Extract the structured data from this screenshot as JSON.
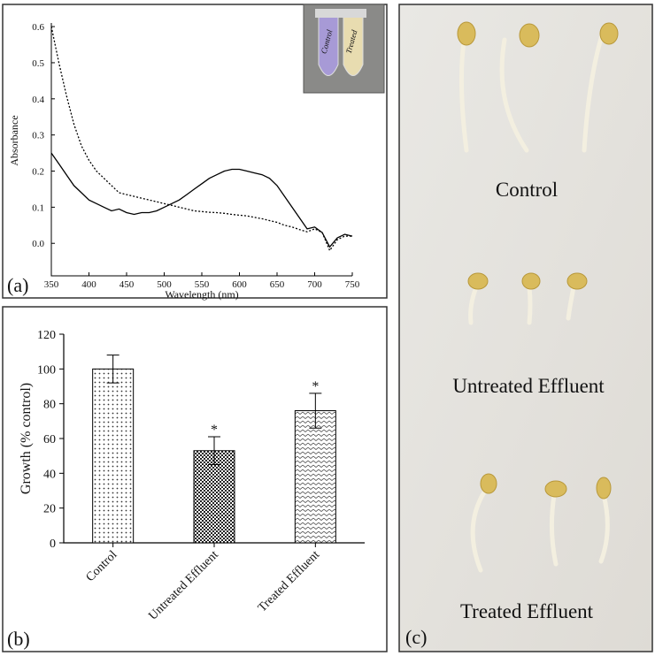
{
  "chart_data": [
    {
      "type": "line",
      "panel_label": "(a)",
      "x_label": "Wavelength (nm)",
      "y_label": "Absorbance",
      "inset_labels": [
        "Control",
        "Treated"
      ],
      "x": [
        350,
        360,
        370,
        380,
        390,
        400,
        410,
        420,
        430,
        440,
        450,
        460,
        470,
        480,
        490,
        500,
        510,
        520,
        530,
        540,
        550,
        560,
        570,
        580,
        590,
        600,
        610,
        620,
        630,
        640,
        650,
        660,
        670,
        680,
        690,
        700,
        710,
        720,
        730,
        740,
        750
      ],
      "series": [
        {
          "color": "#000000",
          "dash": "solid",
          "values": [
            0.25,
            0.22,
            0.19,
            0.16,
            0.14,
            0.12,
            0.11,
            0.1,
            0.09,
            0.095,
            0.085,
            0.08,
            0.085,
            0.085,
            0.09,
            0.1,
            0.11,
            0.12,
            0.135,
            0.15,
            0.165,
            0.18,
            0.19,
            0.2,
            0.205,
            0.205,
            0.2,
            0.195,
            0.19,
            0.18,
            0.16,
            0.13,
            0.1,
            0.07,
            0.04,
            0.045,
            0.03,
            -0.01,
            0.015,
            0.025,
            0.02
          ]
        },
        {
          "color": "#000000",
          "dash": "dotted",
          "values": [
            0.6,
            0.5,
            0.41,
            0.33,
            0.27,
            0.23,
            0.2,
            0.18,
            0.16,
            0.14,
            0.135,
            0.13,
            0.125,
            0.12,
            0.115,
            0.11,
            0.105,
            0.1,
            0.095,
            0.09,
            0.088,
            0.086,
            0.085,
            0.083,
            0.08,
            0.078,
            0.076,
            0.072,
            0.068,
            0.063,
            0.058,
            0.05,
            0.045,
            0.038,
            0.032,
            0.04,
            0.03,
            -0.02,
            0.01,
            0.02,
            0.02
          ]
        }
      ],
      "xlim": [
        350,
        750
      ],
      "xticks": [
        350,
        400,
        450,
        500,
        550,
        600,
        650,
        700,
        750
      ],
      "ylim": [
        -0.09,
        0.61
      ],
      "yticks": [
        {
          "value": 0,
          "label": "0.0"
        },
        0.1,
        0.2,
        0.3,
        0.4,
        0.5,
        0.6
      ]
    },
    {
      "type": "bar",
      "panel_label": "(b)",
      "y_label": "Growth (% control)",
      "categories": [
        "Control",
        "Untreated Effluent",
        "Treated Effluent"
      ],
      "values": [
        100,
        53,
        76
      ],
      "errors": [
        8,
        8,
        10
      ],
      "significance": [
        null,
        "*",
        "*"
      ],
      "patterns": [
        "dots",
        "checker",
        "waves"
      ],
      "ylim": [
        0,
        120
      ],
      "yticks": [
        0,
        20,
        40,
        60,
        80,
        100,
        120
      ]
    }
  ],
  "photo": {
    "panel_label": "(c)",
    "labels": [
      "Control",
      "Untreated Effluent",
      "Treated Effluent"
    ]
  }
}
